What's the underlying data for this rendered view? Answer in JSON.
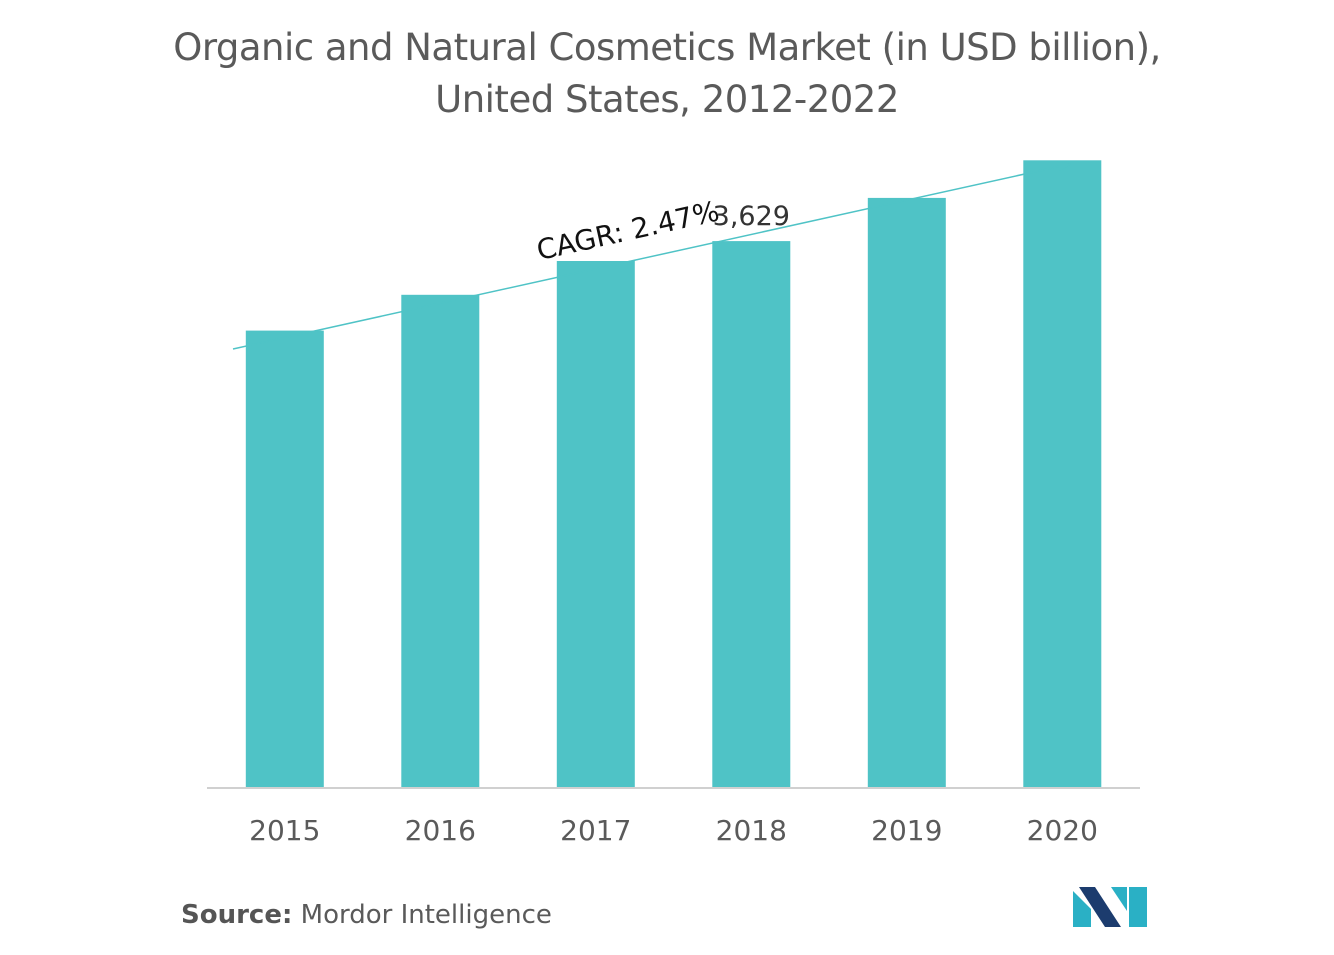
{
  "chart_data": {
    "type": "bar",
    "title_line1": "Organic and Natural Cosmetics Market (in USD billion),",
    "title_line2": "United States, 2012-2022",
    "categories": [
      "2015",
      "2016",
      "2017",
      "2018",
      "2019",
      "2020"
    ],
    "values": [
      3035,
      3273,
      3497,
      3629,
      3916,
      4165
    ],
    "data_labels": [
      {
        "category": "2018",
        "text": "3,629"
      }
    ],
    "annotation": "CAGR: 2.47%",
    "ylim": [
      0,
      4300
    ],
    "xlabel": "",
    "ylabel": "",
    "grid": false,
    "legend": "none",
    "bar_color": "#4fc3c6",
    "arrow_color": "#4fc3c6",
    "axis_color": "#d0d0d0",
    "text_color": "#5a5a5a"
  },
  "source": {
    "label": "Source:",
    "text": "Mordor Intelligence"
  },
  "logo": {
    "name": "mordor-intelligence-logo",
    "colors": [
      "#1c3c6e",
      "#2ab0c5"
    ]
  }
}
